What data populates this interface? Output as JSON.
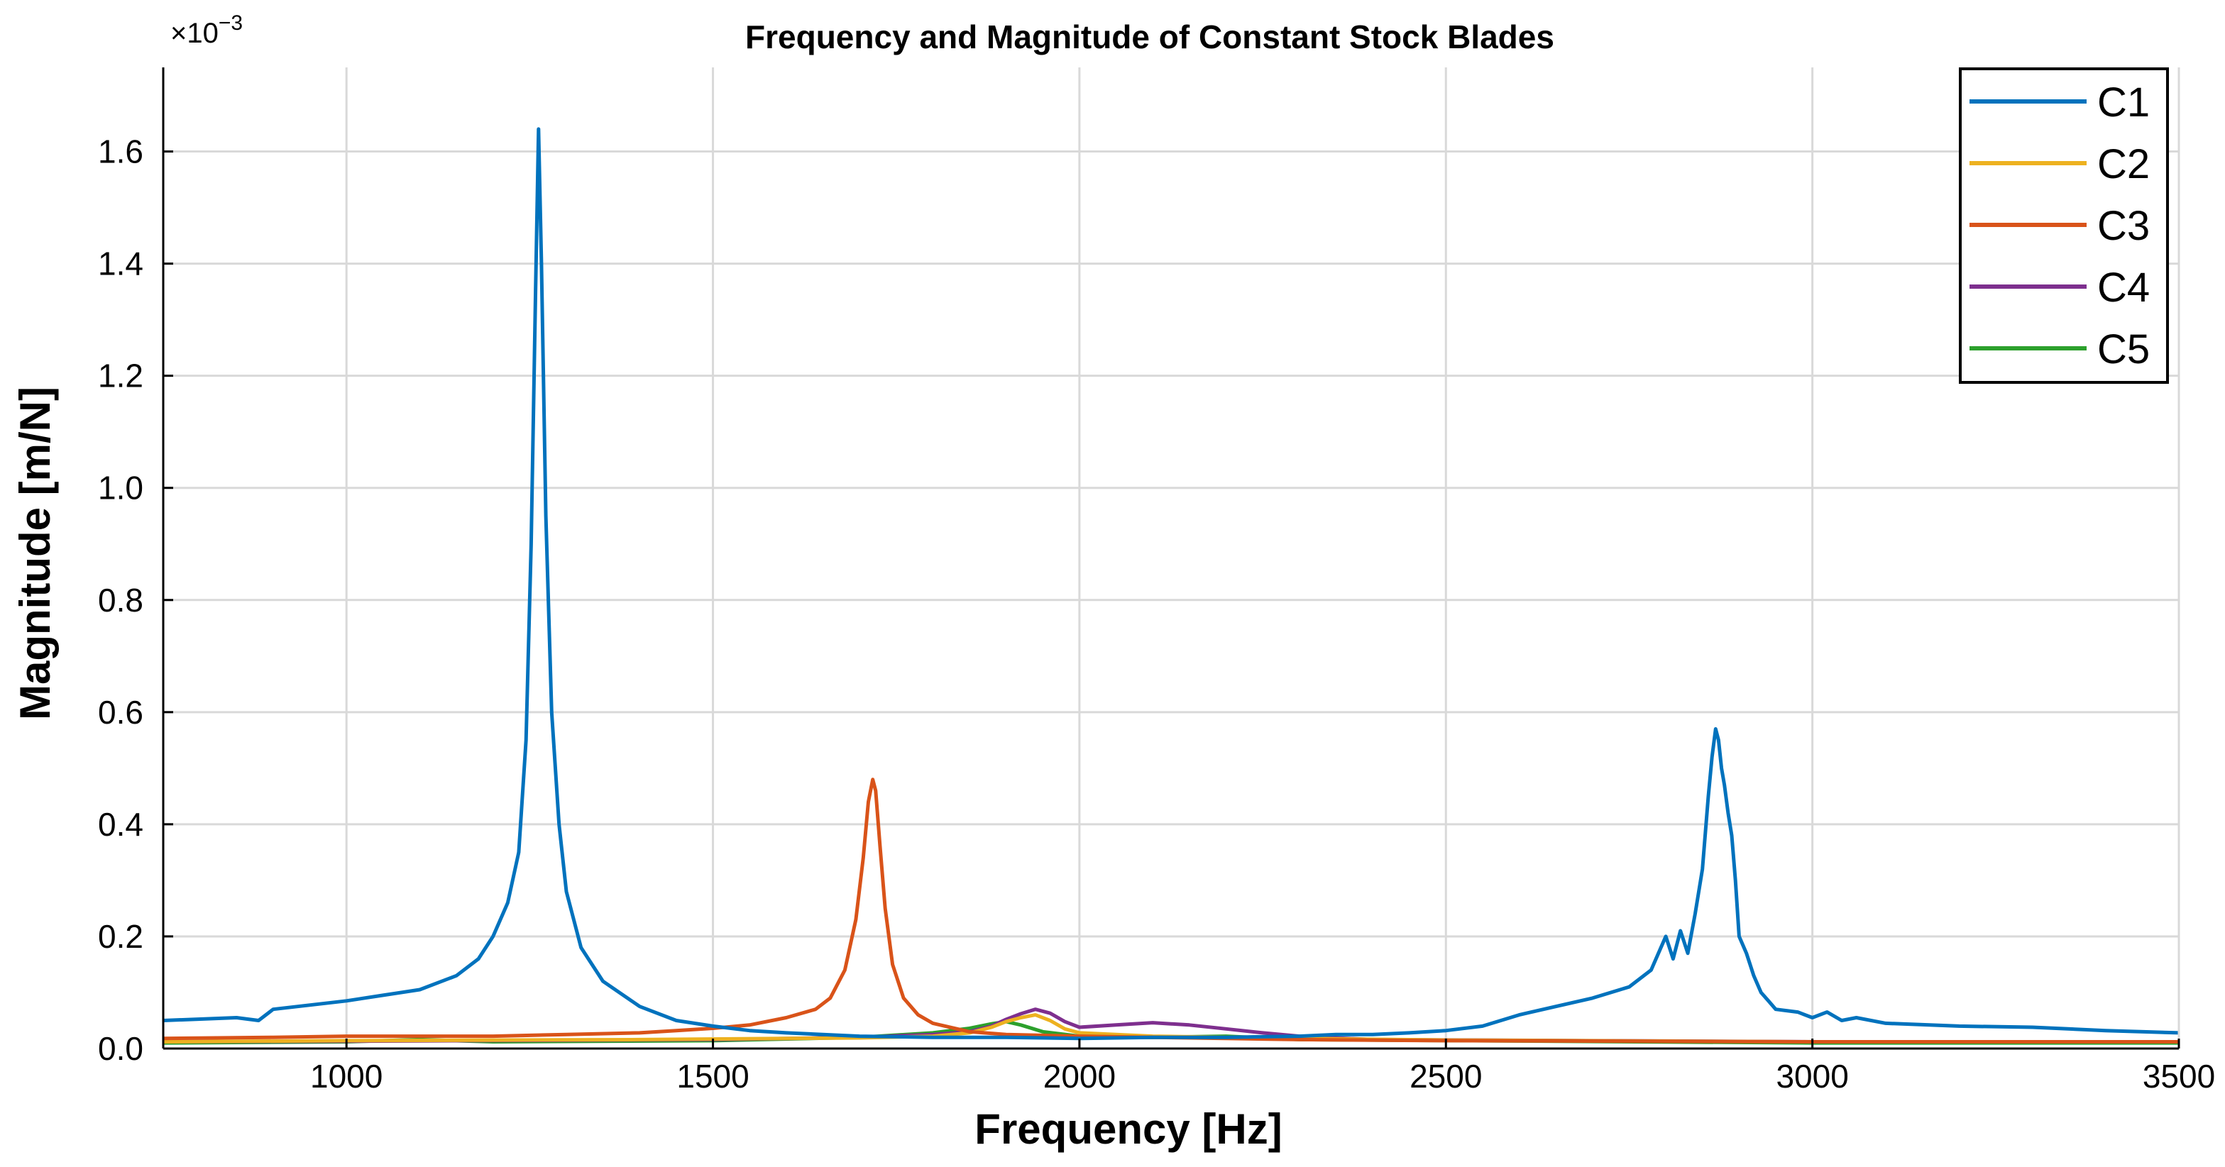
{
  "chart_data": {
    "type": "line",
    "title": "Frequency and Magnitude of Constant Stock Blades",
    "xlabel": "Frequency [Hz]",
    "ylabel": "Magnitude [m/N]",
    "y_multiplier": "×10",
    "y_exponent": "−3",
    "xlim": [
      750,
      3500
    ],
    "ylim": [
      0,
      1.75
    ],
    "grid": true,
    "legend_position": "top-right",
    "x_ticks": [
      1000,
      1500,
      2000,
      2500,
      3000,
      3500
    ],
    "x_tick_labels": [
      "1000",
      "1500",
      "2000",
      "2500",
      "3000",
      "3500"
    ],
    "y_ticks": [
      0,
      0.2,
      0.4,
      0.6,
      0.8,
      1.0,
      1.2,
      1.4,
      1.6
    ],
    "y_tick_labels": [
      "0.0",
      "0.2",
      "0.4",
      "0.6",
      "0.8",
      "1.0",
      "1.2",
      "1.4",
      "1.6"
    ],
    "series": [
      {
        "name": "C1",
        "color": "#0072BD",
        "x": [
          750,
          850,
          880,
          900,
          1000,
          1050,
          1100,
          1150,
          1180,
          1200,
          1220,
          1235,
          1245,
          1252,
          1258,
          1262,
          1266,
          1272,
          1280,
          1290,
          1300,
          1320,
          1350,
          1400,
          1450,
          1500,
          1550,
          1600,
          1700,
          1800,
          1900,
          2000,
          2100,
          2200,
          2300,
          2350,
          2400,
          2450,
          2500,
          2550,
          2600,
          2650,
          2700,
          2750,
          2780,
          2800,
          2810,
          2820,
          2830,
          2840,
          2850,
          2858,
          2863,
          2868,
          2872,
          2876,
          2880,
          2885,
          2890,
          2895,
          2900,
          2910,
          2920,
          2930,
          2940,
          2950,
          2980,
          3000,
          3020,
          3040,
          3060,
          3100,
          3200,
          3300,
          3400,
          3500
        ],
        "y": [
          0.05,
          0.055,
          0.05,
          0.07,
          0.085,
          0.095,
          0.105,
          0.13,
          0.16,
          0.2,
          0.26,
          0.35,
          0.55,
          0.9,
          1.35,
          1.64,
          1.4,
          0.95,
          0.6,
          0.4,
          0.28,
          0.18,
          0.12,
          0.075,
          0.05,
          0.04,
          0.032,
          0.028,
          0.022,
          0.02,
          0.02,
          0.018,
          0.02,
          0.02,
          0.022,
          0.025,
          0.025,
          0.028,
          0.032,
          0.04,
          0.06,
          0.075,
          0.09,
          0.11,
          0.14,
          0.2,
          0.16,
          0.21,
          0.17,
          0.24,
          0.32,
          0.45,
          0.52,
          0.57,
          0.55,
          0.5,
          0.47,
          0.42,
          0.38,
          0.3,
          0.2,
          0.17,
          0.13,
          0.1,
          0.085,
          0.07,
          0.065,
          0.055,
          0.065,
          0.05,
          0.055,
          0.045,
          0.04,
          0.038,
          0.032,
          0.028
        ]
      },
      {
        "name": "C2",
        "color": "#EDB120",
        "x": [
          750,
          1000,
          1400,
          1600,
          1700,
          1800,
          1850,
          1880,
          1900,
          1920,
          1940,
          1960,
          1980,
          2000,
          2050,
          2100,
          2200,
          2300,
          2500,
          3000,
          3500
        ],
        "y": [
          0.012,
          0.014,
          0.016,
          0.018,
          0.019,
          0.022,
          0.028,
          0.038,
          0.048,
          0.055,
          0.06,
          0.05,
          0.035,
          0.028,
          0.025,
          0.022,
          0.02,
          0.018,
          0.015,
          0.012,
          0.012
        ]
      },
      {
        "name": "C3",
        "color": "#D95319",
        "x": [
          750,
          900,
          1000,
          1100,
          1200,
          1300,
          1400,
          1450,
          1500,
          1550,
          1600,
          1640,
          1660,
          1680,
          1695,
          1705,
          1712,
          1718,
          1722,
          1728,
          1735,
          1745,
          1760,
          1780,
          1800,
          1850,
          1900,
          2000,
          2100,
          2200,
          2300,
          2500,
          3000,
          3500
        ],
        "y": [
          0.018,
          0.02,
          0.022,
          0.022,
          0.022,
          0.025,
          0.028,
          0.032,
          0.036,
          0.042,
          0.055,
          0.07,
          0.09,
          0.14,
          0.23,
          0.34,
          0.44,
          0.48,
          0.46,
          0.36,
          0.25,
          0.15,
          0.09,
          0.06,
          0.045,
          0.03,
          0.025,
          0.022,
          0.02,
          0.018,
          0.016,
          0.014,
          0.012,
          0.012
        ]
      },
      {
        "name": "C4",
        "color": "#7E2F8E",
        "x": [
          750,
          1000,
          1500,
          1700,
          1800,
          1850,
          1880,
          1900,
          1920,
          1940,
          1960,
          1980,
          2000,
          2050,
          2100,
          2150,
          2200,
          2250,
          2300,
          2400,
          3000,
          3500
        ],
        "y": [
          0.012,
          0.013,
          0.016,
          0.02,
          0.025,
          0.03,
          0.04,
          0.052,
          0.062,
          0.07,
          0.063,
          0.048,
          0.038,
          0.042,
          0.046,
          0.042,
          0.035,
          0.028,
          0.022,
          0.016,
          0.012,
          0.012
        ]
      },
      {
        "name": "C5",
        "color": "#2CA02C",
        "x": [
          750,
          1000,
          1100,
          1200,
          1500,
          1700,
          1800,
          1850,
          1880,
          1900,
          1920,
          1950,
          2000,
          2050,
          2100,
          2200,
          2300,
          3000,
          3500
        ],
        "y": [
          0.01,
          0.012,
          0.016,
          0.012,
          0.014,
          0.02,
          0.028,
          0.036,
          0.044,
          0.048,
          0.042,
          0.03,
          0.022,
          0.02,
          0.02,
          0.022,
          0.016,
          0.01,
          0.01
        ]
      }
    ]
  }
}
